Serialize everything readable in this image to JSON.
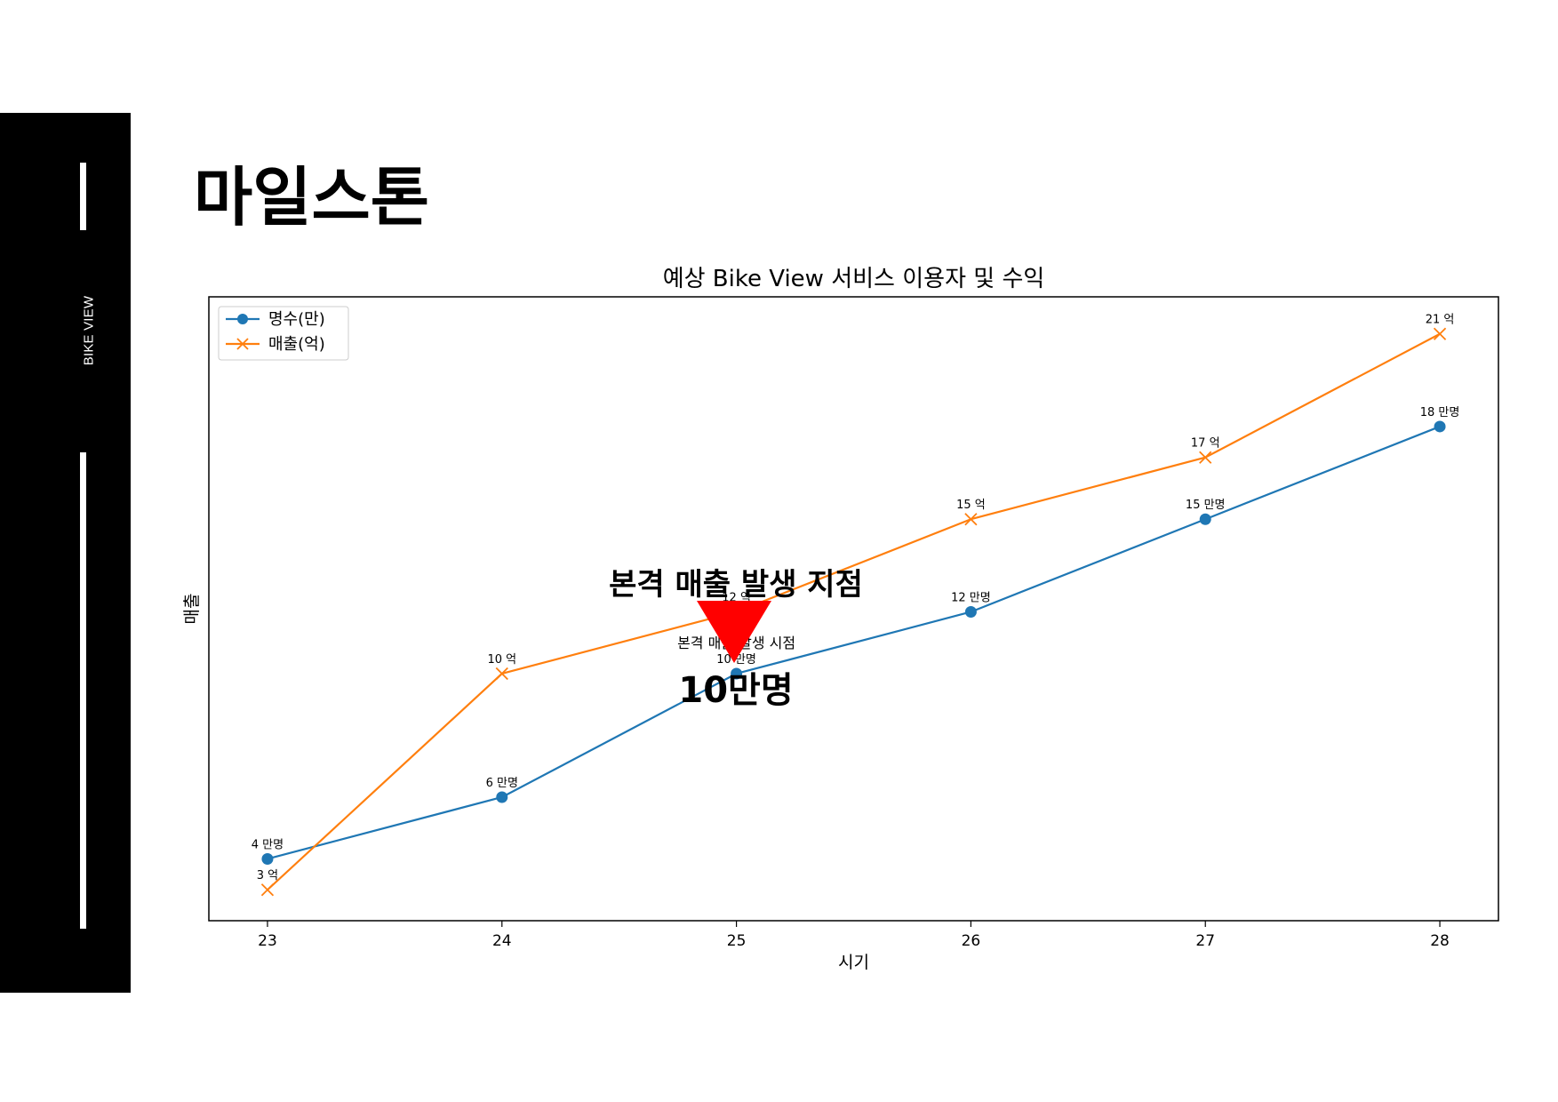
{
  "sidebar": {
    "brand": "BIKE VIEW"
  },
  "page": {
    "title": "마일스톤"
  },
  "annotation": {
    "headline": "본격 매출 발생 지점",
    "value": "10만명",
    "marker_color": "#ff0000"
  },
  "chart_data": {
    "type": "line",
    "title": "예상 Bike View 서비스 이용자 및 수익",
    "xlabel": "시기",
    "ylabel": "매출",
    "x": [
      23,
      24,
      25,
      26,
      27,
      28
    ],
    "xlim": [
      22.75,
      28.25
    ],
    "ylim": [
      2,
      22.2
    ],
    "grid": false,
    "legend_position": "top-left",
    "series": [
      {
        "name": "명수(만)",
        "values": [
          4,
          6,
          10,
          12,
          15,
          18
        ],
        "labels": [
          "4 만명",
          "6 만명",
          "10 만명",
          "12 만명",
          "15 만명",
          "18 만명"
        ],
        "color": "#1f77b4",
        "marker": "circle"
      },
      {
        "name": "매출(억)",
        "values": [
          3,
          10,
          12,
          15,
          17,
          21
        ],
        "labels": [
          "3 억",
          "10 억",
          "12 억",
          "15 억",
          "17 억",
          "21 억"
        ],
        "color": "#ff7f0e",
        "marker": "x"
      }
    ],
    "annotations": [
      {
        "text": "본격 매출 발생 시점",
        "x": 25,
        "y": 11
      }
    ]
  }
}
